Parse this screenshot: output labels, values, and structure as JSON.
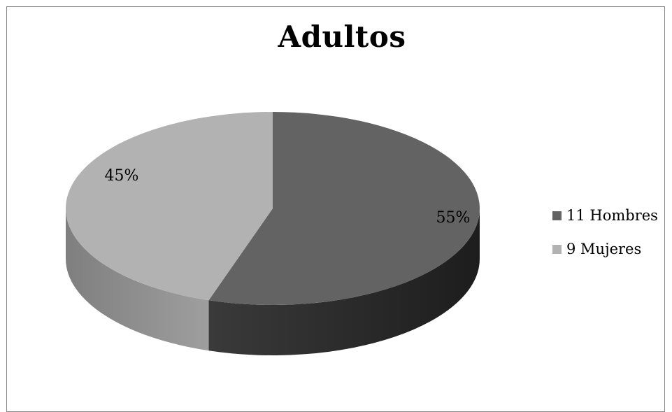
{
  "chart_data": {
    "type": "pie",
    "title": "Adultos",
    "categories": [
      "11 Hombres",
      "9 Mujeres"
    ],
    "values": [
      55,
      45
    ],
    "data_labels": [
      "55%",
      "45%"
    ],
    "colors": [
      "#636363",
      "#b2b2b2"
    ],
    "legend_position": "right",
    "three_d": true
  }
}
